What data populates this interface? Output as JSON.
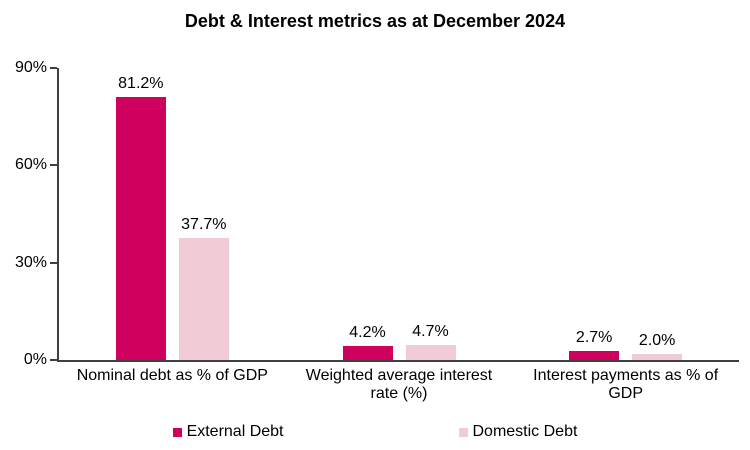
{
  "title": "Debt & Interest metrics as at December 2024",
  "colors": {
    "external_debt": "#D0005F",
    "domestic_debt": "#F0CAD4",
    "axis": "#404040",
    "text": "#000000",
    "background": "#FFFFFF"
  },
  "chart_data": {
    "type": "bar",
    "title": "Debt & Interest metrics as at December 2024",
    "categories": [
      "Nominal debt as % of GDP",
      "Weighted average interest rate (%)",
      "Interest payments as % of GDP"
    ],
    "series": [
      {
        "name": "External Debt",
        "color": "#D0005F",
        "values": [
          81.2,
          4.2,
          2.7
        ],
        "data_labels": [
          "81.2%",
          "4.2%",
          "2.7%"
        ]
      },
      {
        "name": "Domestic Debt",
        "color": "#F0CAD4",
        "values": [
          37.7,
          4.7,
          2.0
        ],
        "data_labels": [
          "37.7%",
          "4.7%",
          "2.0%"
        ]
      }
    ],
    "ylim": [
      0,
      90
    ],
    "y_ticks": [
      {
        "label": "90%",
        "value": 90
      },
      {
        "label": "60%",
        "value": 60
      },
      {
        "label": "30%",
        "value": 30
      },
      {
        "label": "0%",
        "value": 0
      }
    ],
    "grid": false,
    "legend_position": "bottom"
  }
}
